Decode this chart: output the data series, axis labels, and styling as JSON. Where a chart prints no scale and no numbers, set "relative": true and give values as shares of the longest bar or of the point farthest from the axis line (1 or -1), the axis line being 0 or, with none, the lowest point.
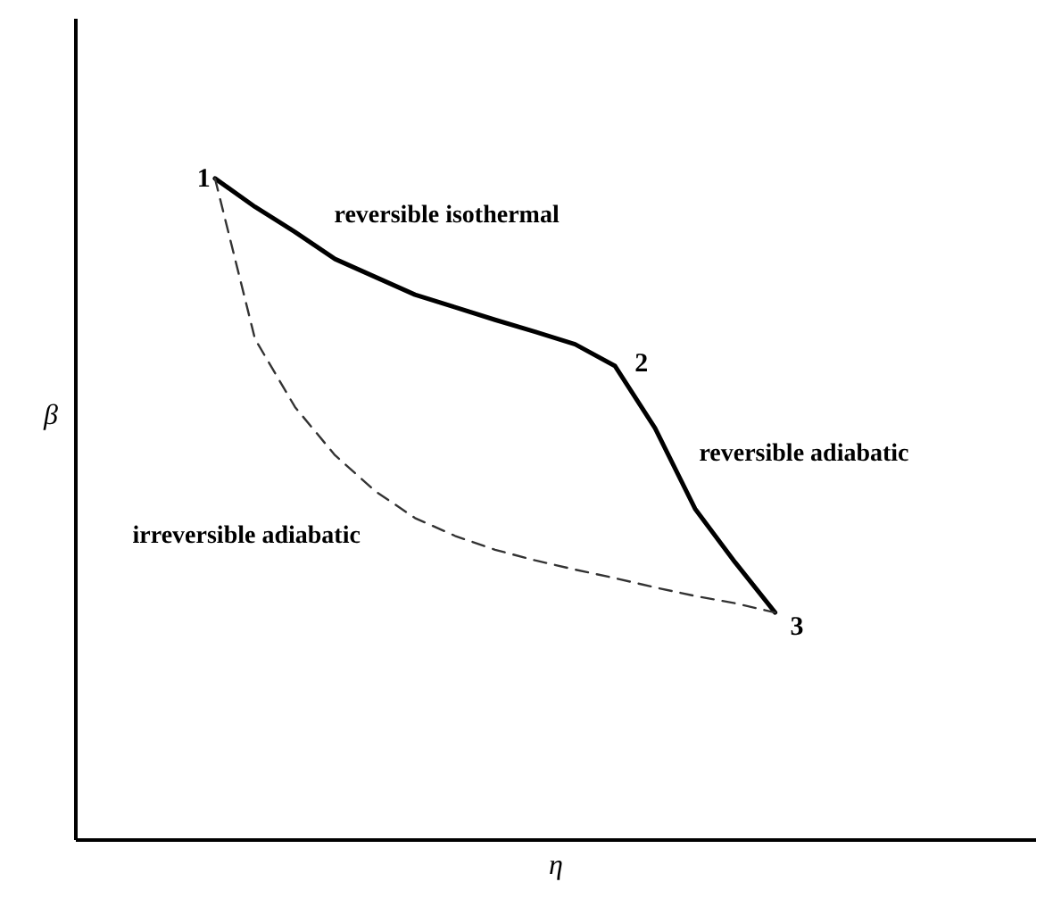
{
  "chart_data": {
    "type": "line",
    "relative": true,
    "xlabel": "η",
    "ylabel": "β",
    "tick_labels": false,
    "grid": false,
    "categories": [
      null,
      null,
      null,
      null,
      null,
      null,
      null,
      null,
      null,
      null,
      null,
      null,
      null,
      null,
      null,
      null,
      null,
      null,
      null,
      null,
      null,
      null,
      null,
      null
    ],
    "series": [
      {
        "color": "#000000",
        "line_style": "solid",
        "values": [
          null,
          null,
          null,
          1.0,
          0.957,
          0.919,
          0.878,
          0.851,
          0.824,
          0.805,
          0.786,
          0.768,
          0.749,
          0.716,
          0.622,
          0.5,
          0.419,
          0.343,
          null,
          null,
          null,
          null,
          null,
          null
        ]
      },
      {
        "color": "#333333",
        "line_style": "dashed",
        "values": [
          null,
          null,
          null,
          1.0,
          0.757,
          0.654,
          0.581,
          0.527,
          0.486,
          0.459,
          0.438,
          0.422,
          0.408,
          0.395,
          0.381,
          0.368,
          0.357,
          0.343,
          null,
          null,
          null,
          null,
          null,
          null
        ]
      }
    ],
    "annotations": [
      "1",
      "2",
      "3",
      "reversible isothermal",
      "reversible adiabatic",
      "irreversible adiabatic"
    ]
  }
}
